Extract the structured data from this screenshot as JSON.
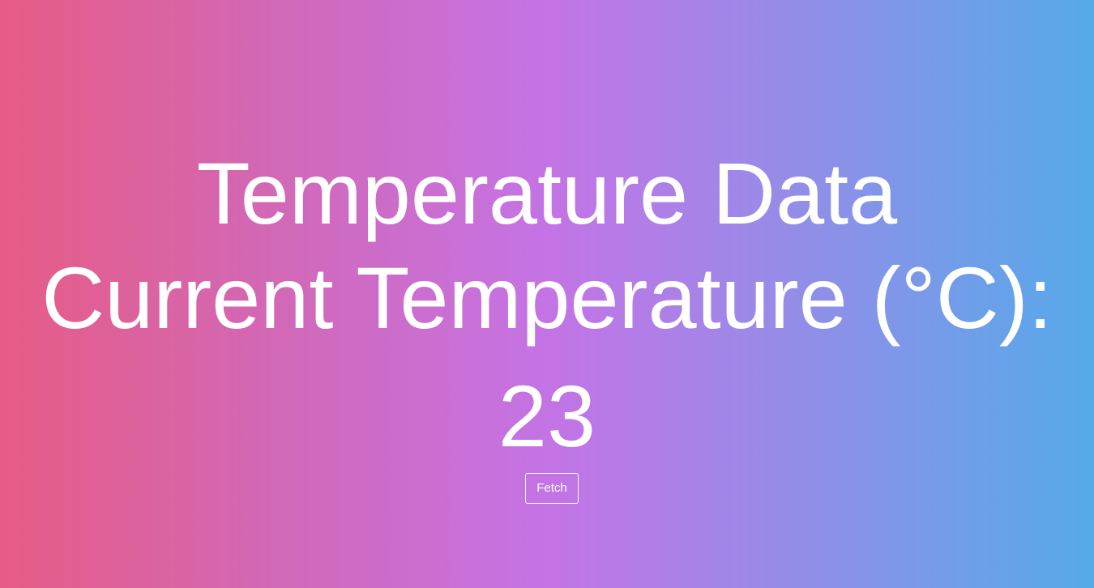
{
  "page": {
    "title": "Temperature Data",
    "temperature_label": "Current Temperature (°C):",
    "temperature_value": "23",
    "fetch_button_label": "Fetch"
  },
  "colors": {
    "gradient_left": "#e65c85",
    "gradient_mid": "#c473e5",
    "gradient_right": "#55aae9",
    "text": "#ffffff"
  }
}
